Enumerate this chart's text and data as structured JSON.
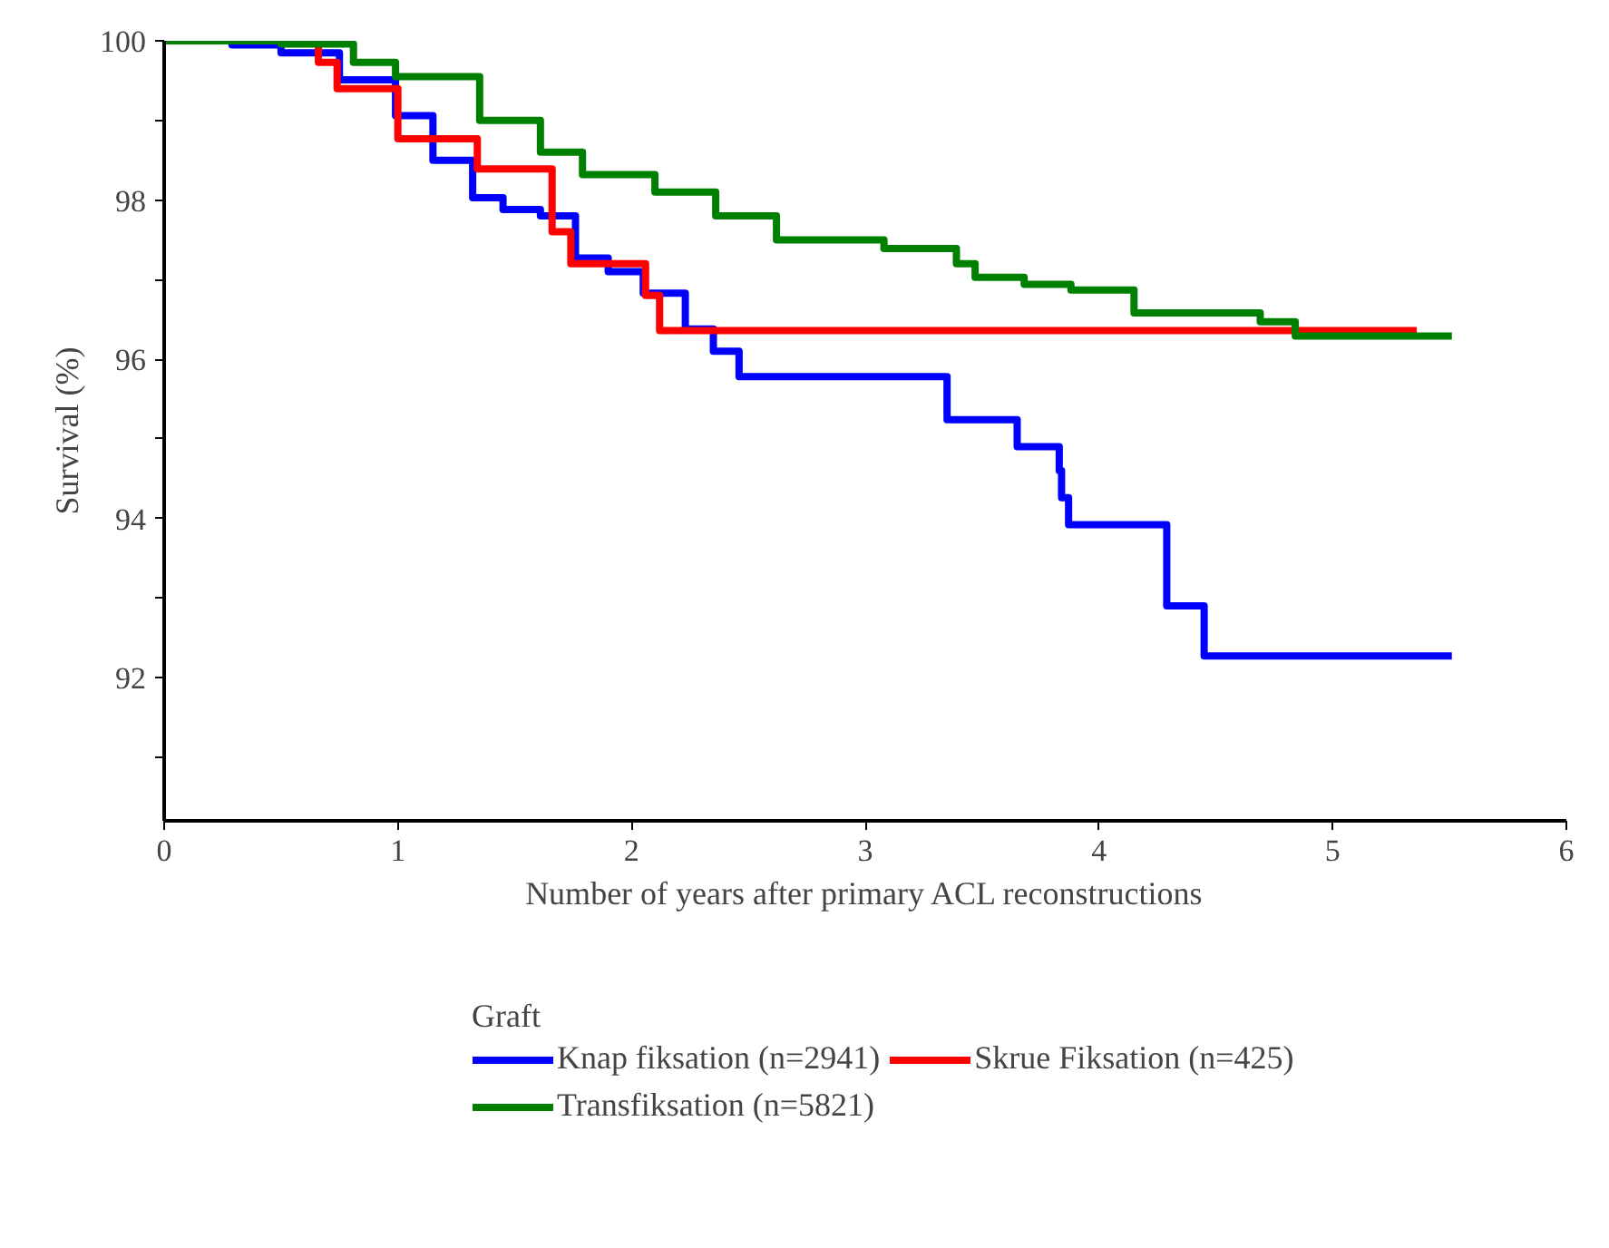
{
  "chart_data": {
    "type": "step",
    "xlabel": "Number of years after primary ACL reconstructions",
    "ylabel": "Survival (%)",
    "legend_title": "Graft",
    "legend": "bottom",
    "grid": false,
    "line_style": "solid",
    "xlim": [
      0,
      6
    ],
    "xticks": [
      0,
      1,
      2,
      3,
      4,
      5,
      6
    ],
    "ylim": [
      90.2,
      100
    ],
    "yticks": [
      {
        "value": 91,
        "label": null
      },
      92,
      {
        "value": 93,
        "label": null
      },
      94,
      {
        "value": 95,
        "label": null
      },
      96,
      {
        "value": 97,
        "label": null
      },
      98,
      {
        "value": 99,
        "label": null
      },
      100
    ],
    "series": [
      {
        "name": "Knap fiksation (n=2941)",
        "color": "#0000ff",
        "x": [
          0,
          0.29,
          0.5,
          0.75,
          0.99,
          1.15,
          1.32,
          1.45,
          1.61,
          1.76,
          1.9,
          2.05,
          2.23,
          2.35,
          2.46,
          3.35,
          3.65,
          3.83,
          3.84,
          3.87,
          4.29,
          4.45,
          5.51
        ],
        "values": [
          100,
          99.95,
          99.85,
          99.51,
          99.06,
          98.5,
          98.03,
          97.88,
          97.8,
          97.27,
          97.1,
          96.83,
          96.38,
          96.1,
          95.78,
          95.24,
          94.9,
          94.6,
          94.26,
          93.92,
          92.9,
          92.27,
          92.27
        ]
      },
      {
        "name": "Skrue Fiksation (n=425)",
        "color": "#ff0000",
        "x": [
          0,
          0.66,
          0.74,
          1.0,
          1.34,
          1.66,
          1.74,
          2.06,
          2.12,
          5.36
        ],
        "values": [
          100,
          99.73,
          99.4,
          98.77,
          98.39,
          97.6,
          97.2,
          96.8,
          96.36,
          96.36
        ]
      },
      {
        "name": "Transfiksation (n=5821)",
        "color": "#008000",
        "x": [
          0,
          0.5,
          0.81,
          0.99,
          1.35,
          1.61,
          1.79,
          2.1,
          2.36,
          2.62,
          3.08,
          3.39,
          3.47,
          3.68,
          3.88,
          4.15,
          4.69,
          4.84,
          5.51
        ],
        "values": [
          100,
          99.96,
          99.73,
          99.55,
          99.0,
          98.6,
          98.32,
          98.1,
          97.8,
          97.5,
          97.39,
          97.2,
          97.03,
          96.94,
          96.87,
          96.58,
          96.47,
          96.29,
          96.29
        ]
      }
    ]
  }
}
